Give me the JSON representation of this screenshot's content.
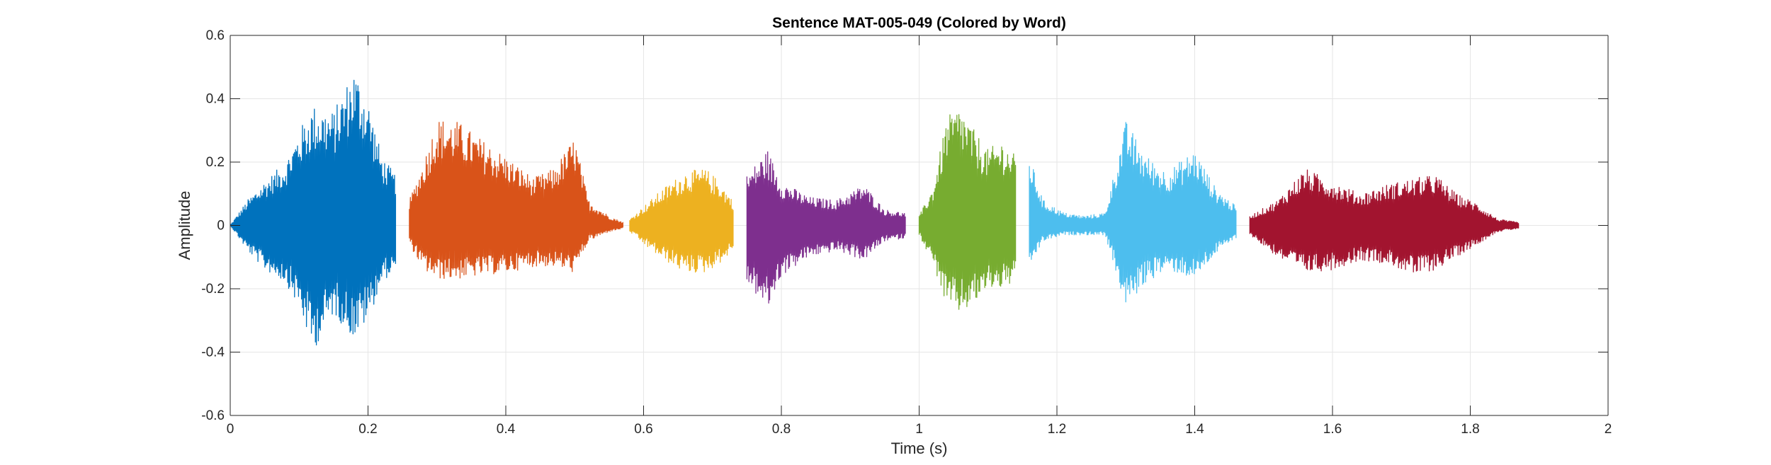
{
  "chart_data": {
    "type": "line",
    "title": "Sentence MAT-005-049 (Colored by Word)",
    "xlabel": "Time (s)",
    "ylabel": "Amplitude",
    "xlim": [
      0,
      2
    ],
    "ylim": [
      -0.6,
      0.6
    ],
    "grid": true,
    "x_ticks": [
      0,
      0.2,
      0.4,
      0.6,
      0.8,
      1,
      1.2,
      1.4,
      1.6,
      1.8,
      2
    ],
    "x_tick_labels": [
      "0",
      "0.2",
      "0.4",
      "0.6",
      "0.8",
      "1",
      "1.2",
      "1.4",
      "1.6",
      "1.8",
      "2"
    ],
    "y_ticks": [
      -0.6,
      -0.4,
      -0.2,
      0,
      0.2,
      0.4,
      0.6
    ],
    "y_tick_labels": [
      "-0.6",
      "-0.4",
      "-0.2",
      "0",
      "0.2",
      "0.4",
      "0.6"
    ],
    "series": [
      {
        "color": "#0072BD",
        "x": [
          0.0,
          0.025,
          0.05,
          0.08,
          0.1,
          0.12,
          0.15,
          0.18,
          0.2,
          0.22,
          0.24
        ],
        "upper": [
          0.0,
          0.08,
          0.14,
          0.2,
          0.3,
          0.38,
          0.36,
          0.5,
          0.4,
          0.22,
          0.16
        ],
        "lower": [
          0.0,
          -0.08,
          -0.14,
          -0.18,
          -0.26,
          -0.4,
          -0.28,
          -0.36,
          -0.3,
          -0.18,
          -0.14
        ]
      },
      {
        "color": "#D95319",
        "x": [
          0.26,
          0.28,
          0.3,
          0.33,
          0.36,
          0.4,
          0.44,
          0.47,
          0.5,
          0.52,
          0.55,
          0.57
        ],
        "upper": [
          0.08,
          0.2,
          0.34,
          0.33,
          0.28,
          0.22,
          0.15,
          0.18,
          0.28,
          0.08,
          0.03,
          0.01
        ],
        "lower": [
          -0.06,
          -0.14,
          -0.17,
          -0.17,
          -0.16,
          -0.15,
          -0.13,
          -0.13,
          -0.15,
          -0.05,
          -0.02,
          -0.01
        ]
      },
      {
        "color": "#EDB120",
        "x": [
          0.58,
          0.6,
          0.63,
          0.66,
          0.69,
          0.71,
          0.73
        ],
        "upper": [
          0.02,
          0.06,
          0.12,
          0.17,
          0.18,
          0.14,
          0.08
        ],
        "lower": [
          -0.02,
          -0.06,
          -0.11,
          -0.15,
          -0.15,
          -0.12,
          -0.08
        ]
      },
      {
        "color": "#7E2F8E",
        "x": [
          0.75,
          0.78,
          0.8,
          0.84,
          0.88,
          0.92,
          0.95,
          0.98
        ],
        "upper": [
          0.16,
          0.24,
          0.14,
          0.09,
          0.08,
          0.13,
          0.05,
          0.04
        ],
        "lower": [
          -0.18,
          -0.27,
          -0.16,
          -0.1,
          -0.08,
          -0.11,
          -0.05,
          -0.04
        ]
      },
      {
        "color": "#77AC30",
        "x": [
          1.0,
          1.02,
          1.04,
          1.06,
          1.08,
          1.1,
          1.12,
          1.14
        ],
        "upper": [
          0.03,
          0.12,
          0.34,
          0.38,
          0.3,
          0.24,
          0.27,
          0.22
        ],
        "lower": [
          -0.03,
          -0.12,
          -0.26,
          -0.28,
          -0.25,
          -0.2,
          -0.2,
          -0.18
        ]
      },
      {
        "color": "#4DBEEE",
        "x": [
          1.16,
          1.18,
          1.21,
          1.24,
          1.27,
          1.3,
          1.33,
          1.36,
          1.4,
          1.43,
          1.46
        ],
        "upper": [
          0.22,
          0.08,
          0.04,
          0.03,
          0.04,
          0.33,
          0.22,
          0.17,
          0.24,
          0.12,
          0.06
        ],
        "lower": [
          -0.13,
          -0.05,
          -0.03,
          -0.03,
          -0.03,
          -0.26,
          -0.18,
          -0.14,
          -0.17,
          -0.09,
          -0.04
        ]
      },
      {
        "color": "#A2142F",
        "x": [
          1.48,
          1.52,
          1.56,
          1.6,
          1.64,
          1.68,
          1.72,
          1.75,
          1.78,
          1.81,
          1.84,
          1.87
        ],
        "upper": [
          0.03,
          0.08,
          0.18,
          0.14,
          0.1,
          0.13,
          0.15,
          0.16,
          0.1,
          0.07,
          0.02,
          0.01
        ],
        "lower": [
          -0.03,
          -0.1,
          -0.15,
          -0.14,
          -0.11,
          -0.12,
          -0.16,
          -0.14,
          -0.1,
          -0.06,
          -0.02,
          -0.01
        ]
      }
    ]
  }
}
